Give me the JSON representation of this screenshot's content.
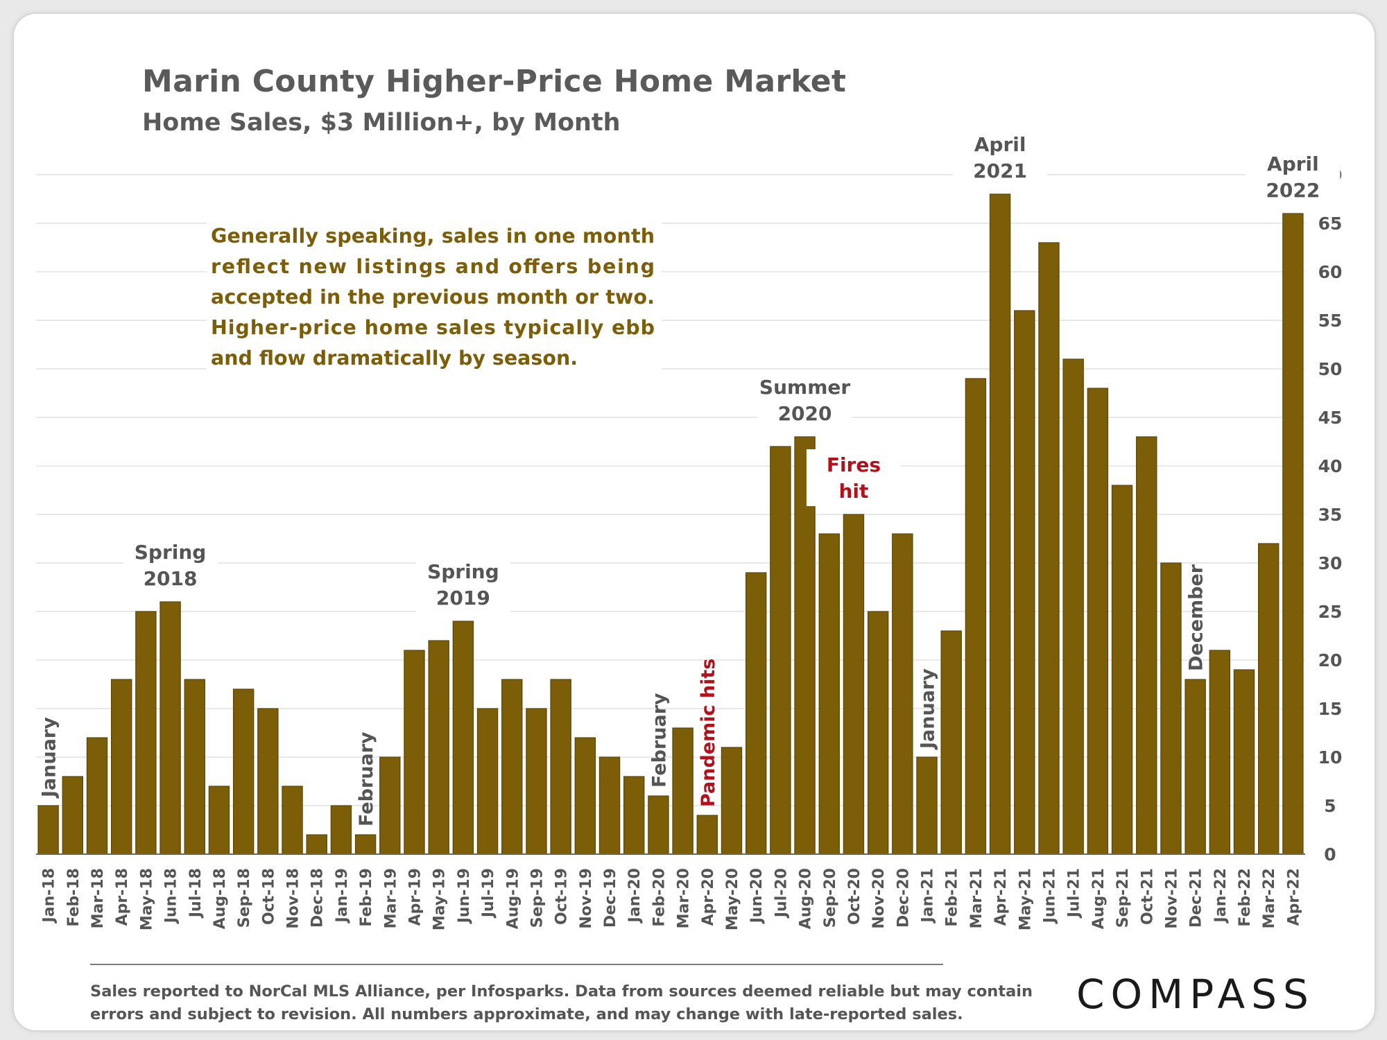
{
  "title": "Marin County Higher-Price Home Market",
  "subtitle": "Home Sales, $3 Million+, by Month",
  "callout": "Generally speaking, sales in one month reflect new listings and offers being accepted in the previous month or two. Higher-price home sales typically ebb and flow dramatically by season.",
  "footer_note": [
    "Sales reported to NorCal MLS Alliance, per Infosparks. Data from sources deemed reliable but may contain",
    "errors and subject to revision. All numbers approximate, and may change with late-reported sales."
  ],
  "logo": "COMPASS",
  "colors": {
    "bar": "#7b5e07",
    "callout_text": "#7b5e07",
    "annotation_gray": "#555555",
    "annotation_red": "#b4101c",
    "grid": "#e2e2e2"
  },
  "chart_data": {
    "type": "bar",
    "categories": [
      "Jan-18",
      "Feb-18",
      "Mar-18",
      "Apr-18",
      "May-18",
      "Jun-18",
      "Jul-18",
      "Aug-18",
      "Sep-18",
      "Oct-18",
      "Nov-18",
      "Dec-18",
      "Jan-19",
      "Feb-19",
      "Mar-19",
      "Apr-19",
      "May-19",
      "Jun-19",
      "Jul-19",
      "Aug-19",
      "Sep-19",
      "Oct-19",
      "Nov-19",
      "Dec-19",
      "Jan-20",
      "Feb-20",
      "Mar-20",
      "Apr-20",
      "May-20",
      "Jun-20",
      "Jul-20",
      "Aug-20",
      "Sep-20",
      "Oct-20",
      "Nov-20",
      "Dec-20",
      "Jan-21",
      "Feb-21",
      "Mar-21",
      "Apr-21",
      "May-21",
      "Jun-21",
      "Jul-21",
      "Aug-21",
      "Sep-21",
      "Oct-21",
      "Nov-21",
      "Dec-21",
      "Jan-22",
      "Feb-22",
      "Mar-22",
      "Apr-22"
    ],
    "values": [
      5,
      8,
      12,
      18,
      25,
      26,
      18,
      7,
      17,
      15,
      7,
      2,
      5,
      2,
      10,
      21,
      22,
      24,
      15,
      18,
      15,
      18,
      12,
      10,
      8,
      6,
      13,
      4,
      11,
      29,
      42,
      43,
      33,
      35,
      25,
      33,
      10,
      23,
      49,
      68,
      56,
      63,
      51,
      48,
      38,
      43,
      30,
      18,
      21,
      19,
      32,
      66
    ],
    "ylim": [
      0,
      70
    ],
    "yticks": [
      0,
      5,
      10,
      15,
      20,
      25,
      30,
      35,
      40,
      45,
      50,
      55,
      60,
      65,
      70
    ],
    "y_axis_side": "right",
    "grid": true,
    "legend": "none",
    "annotations": [
      {
        "text": "January",
        "category": "Jan-18",
        "rotated": true,
        "color": "gray"
      },
      {
        "text": "Spring\n2018",
        "category": "Jun-18",
        "rotated": false,
        "color": "gray"
      },
      {
        "text": "February",
        "category": "Feb-19",
        "rotated": true,
        "color": "gray"
      },
      {
        "text": "Spring\n2019",
        "category": "Jun-19",
        "rotated": false,
        "color": "gray"
      },
      {
        "text": "February",
        "category": "Feb-20",
        "rotated": true,
        "color": "gray"
      },
      {
        "text": "Pandemic hits",
        "category": "Apr-20",
        "rotated": true,
        "color": "red"
      },
      {
        "text": "Summer\n2020",
        "category": "Aug-20",
        "rotated": false,
        "color": "gray"
      },
      {
        "text": "Fires\nhit",
        "category": "Oct-20",
        "rotated": false,
        "color": "red"
      },
      {
        "text": "January",
        "category": "Jan-21",
        "rotated": true,
        "color": "gray"
      },
      {
        "text": "April\n2021",
        "category": "Apr-21",
        "rotated": false,
        "color": "gray"
      },
      {
        "text": "December",
        "category": "Dec-21",
        "rotated": true,
        "color": "gray"
      },
      {
        "text": "April\n2022",
        "category": "Apr-22",
        "rotated": false,
        "color": "gray"
      }
    ]
  }
}
